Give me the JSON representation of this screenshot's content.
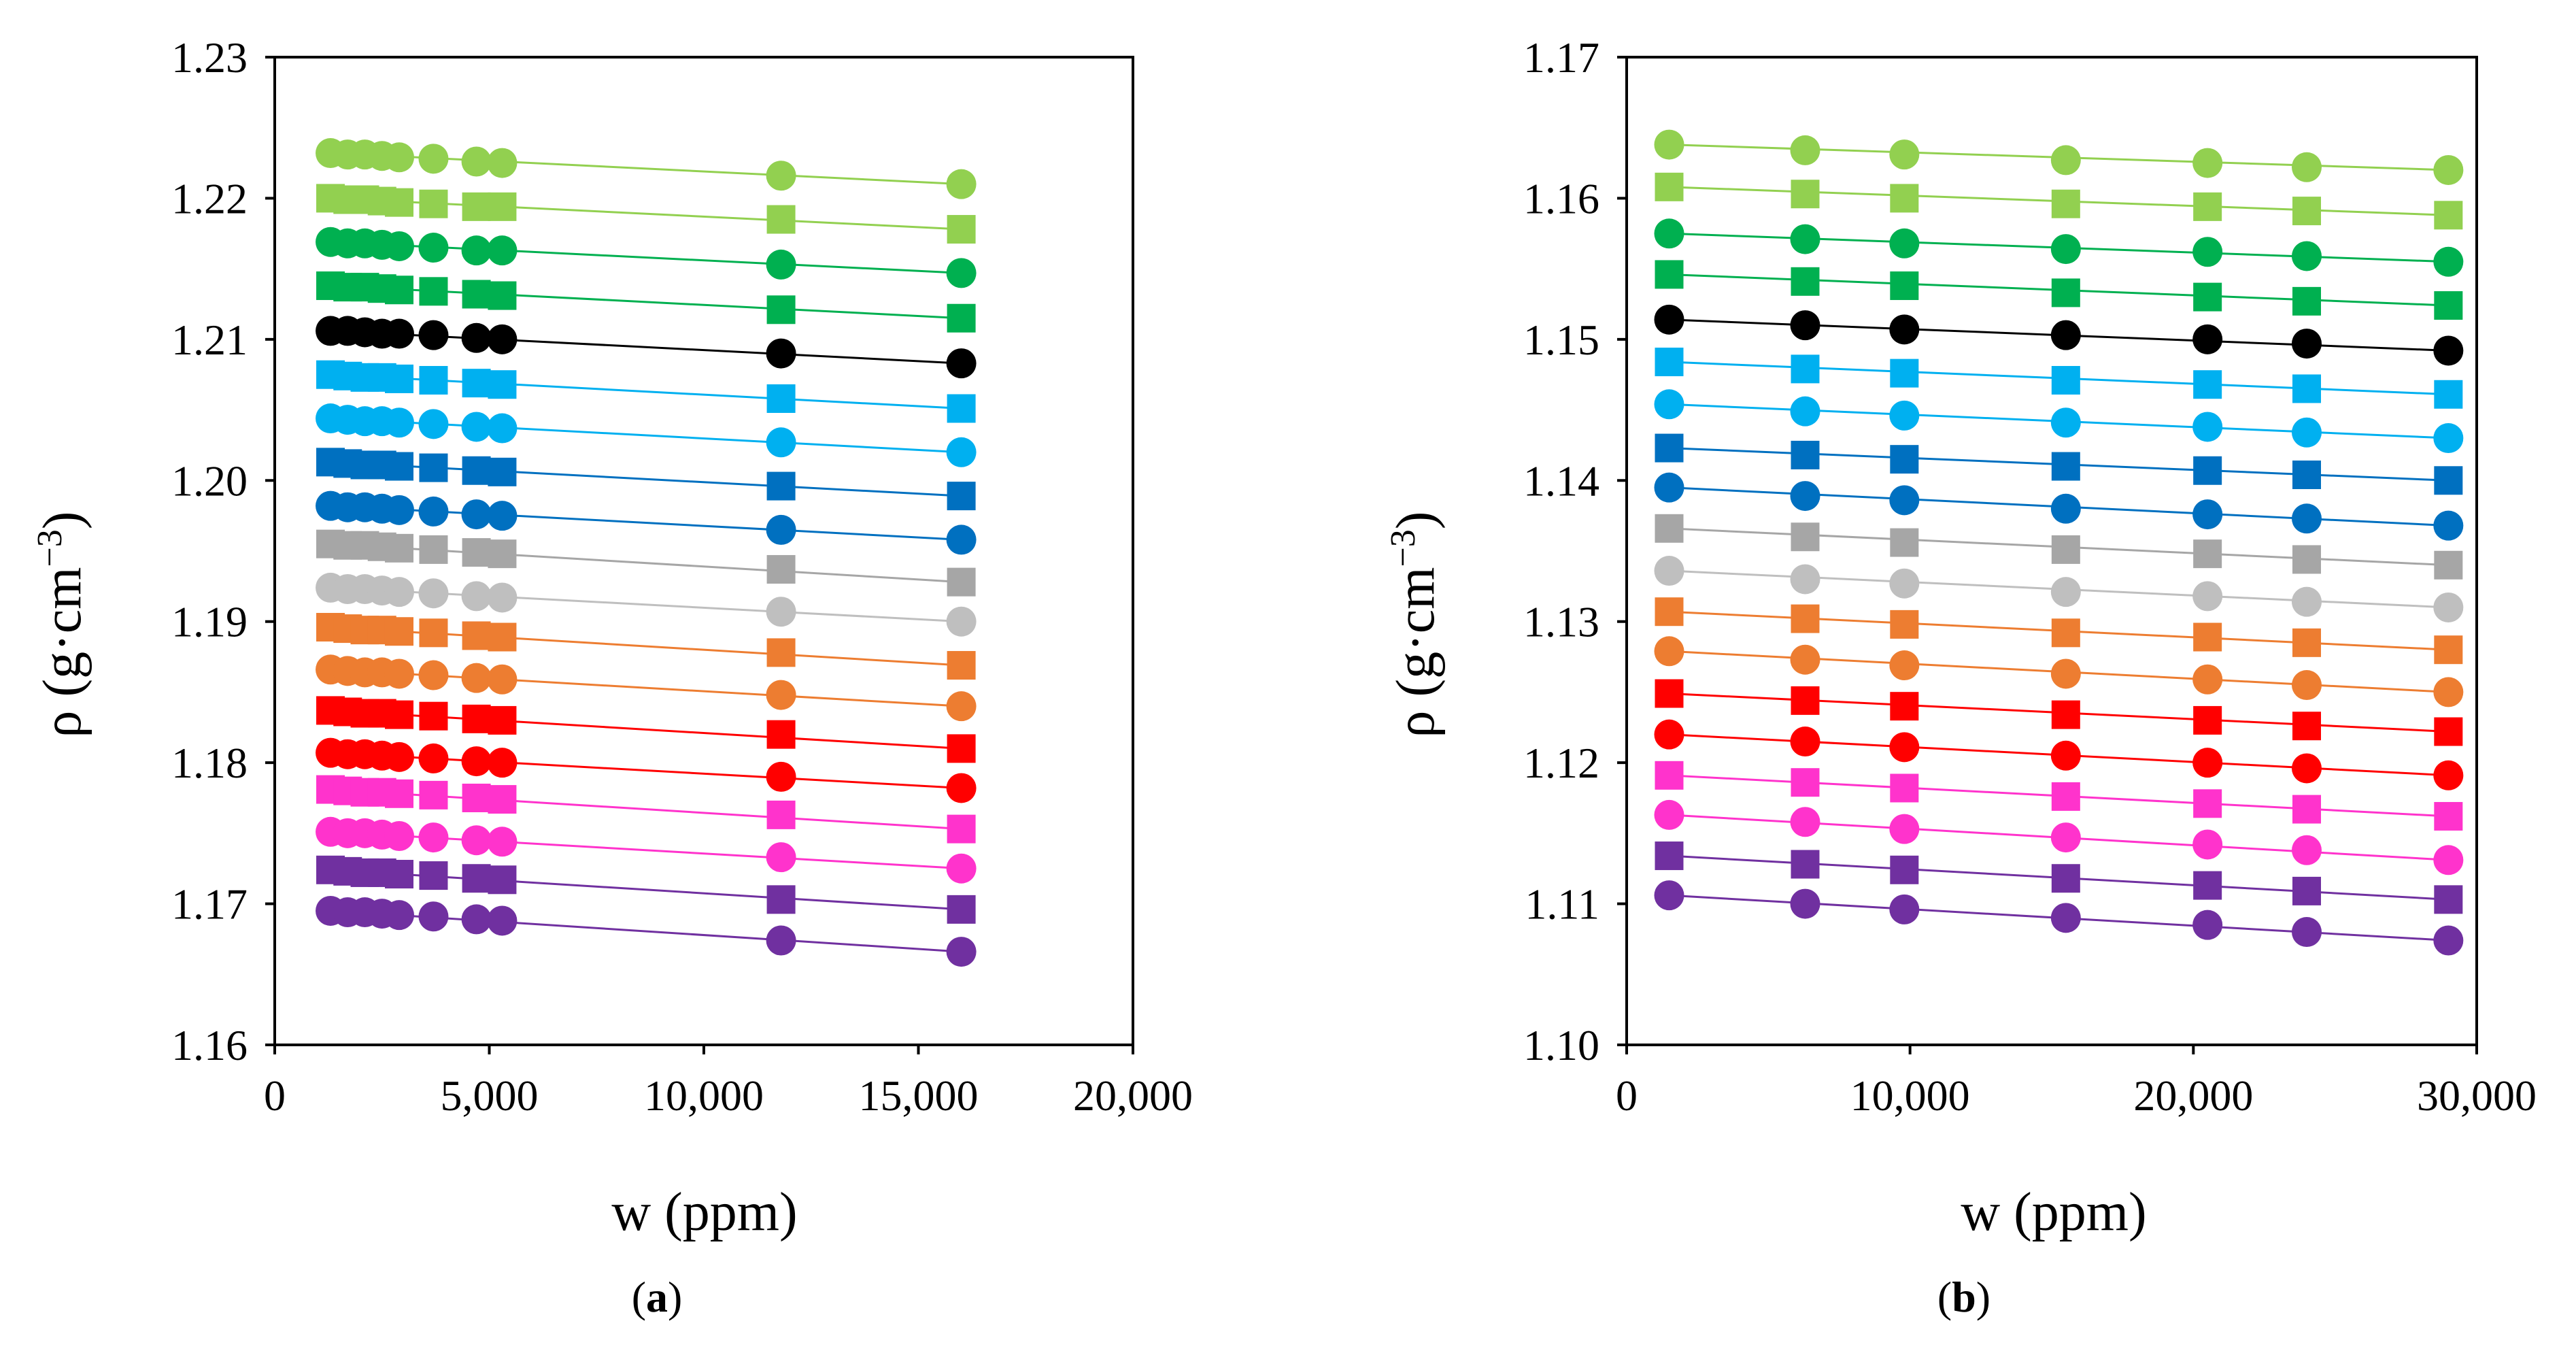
{
  "chart_data": [
    {
      "type": "scatter",
      "panel_label_open": "(",
      "panel_label": "a",
      "panel_label_close": ")",
      "xlabel": "w (ppm)",
      "ylabel_main": "ρ (g·cm",
      "ylabel_sup": "−3",
      "ylabel_close": ")",
      "xlim": [
        0,
        20000
      ],
      "ylim": [
        1.16,
        1.23
      ],
      "x_ticks": [
        0,
        5000,
        10000,
        15000,
        20000
      ],
      "x_tick_labels": [
        "0",
        "5,000",
        "10,000",
        "15,000",
        "20,000"
      ],
      "y_ticks": [
        1.16,
        1.17,
        1.18,
        1.19,
        1.2,
        1.21,
        1.22,
        1.23
      ],
      "y_tick_labels": [
        "1.16",
        "1.17",
        "1.18",
        "1.19",
        "1.20",
        "1.21",
        "1.22",
        "1.23"
      ],
      "x": [
        1300,
        1700,
        2100,
        2500,
        2900,
        3700,
        4700,
        5300,
        11800,
        16000
      ],
      "series": [
        {
          "color": "#92D050",
          "marker": "circle",
          "values": [
            1.2232,
            1.2231,
            1.2231,
            1.223,
            1.2229,
            1.2228,
            1.2226,
            1.2225,
            1.2216,
            1.221
          ]
        },
        {
          "color": "#92D050",
          "marker": "square",
          "values": [
            1.22,
            1.2199,
            1.2199,
            1.2198,
            1.2197,
            1.2196,
            1.2194,
            1.2194,
            1.2185,
            1.2178
          ]
        },
        {
          "color": "#00B050",
          "marker": "circle",
          "values": [
            1.2169,
            1.2168,
            1.2168,
            1.2167,
            1.2166,
            1.2165,
            1.2163,
            1.2163,
            1.2153,
            1.2147
          ]
        },
        {
          "color": "#00B050",
          "marker": "square",
          "values": [
            1.2138,
            1.2137,
            1.2137,
            1.2136,
            1.2135,
            1.2134,
            1.2132,
            1.2131,
            1.2121,
            1.2115
          ]
        },
        {
          "color": "#000000",
          "marker": "circle",
          "values": [
            1.2106,
            1.2106,
            1.2105,
            1.2104,
            1.2104,
            1.2103,
            1.2101,
            1.21,
            1.209,
            1.2083
          ]
        },
        {
          "color": "#00B0F0",
          "marker": "square",
          "values": [
            1.2075,
            1.2074,
            1.2073,
            1.2073,
            1.2072,
            1.2071,
            1.2069,
            1.2068,
            1.2058,
            1.2051
          ]
        },
        {
          "color": "#00B0F0",
          "marker": "circle",
          "values": [
            1.2044,
            1.2043,
            1.2042,
            1.2042,
            1.2041,
            1.204,
            1.2038,
            1.2037,
            1.2027,
            1.202
          ]
        },
        {
          "color": "#0070C0",
          "marker": "square",
          "values": [
            1.2013,
            1.2012,
            1.2011,
            1.2011,
            1.201,
            1.2009,
            1.2007,
            1.2006,
            1.1996,
            1.1989
          ]
        },
        {
          "color": "#0070C0",
          "marker": "circle",
          "values": [
            1.1982,
            1.1981,
            1.1981,
            1.198,
            1.1979,
            1.1978,
            1.1976,
            1.1975,
            1.1965,
            1.1958
          ]
        },
        {
          "color": "#A6A6A6",
          "marker": "square",
          "values": [
            1.1955,
            1.1954,
            1.1954,
            1.1953,
            1.1952,
            1.1951,
            1.1949,
            1.1948,
            1.1937,
            1.1928
          ]
        },
        {
          "color": "#BFBFBF",
          "marker": "circle",
          "values": [
            1.1924,
            1.1923,
            1.1923,
            1.1922,
            1.1921,
            1.192,
            1.1918,
            1.1917,
            1.1907,
            1.19
          ]
        },
        {
          "color": "#ED7D31",
          "marker": "square",
          "values": [
            1.1896,
            1.1895,
            1.1894,
            1.1894,
            1.1893,
            1.1892,
            1.189,
            1.1889,
            1.1878,
            1.1869
          ]
        },
        {
          "color": "#ED7D31",
          "marker": "circle",
          "values": [
            1.1866,
            1.1865,
            1.1864,
            1.1864,
            1.1863,
            1.1862,
            1.186,
            1.1859,
            1.1848,
            1.184
          ]
        },
        {
          "color": "#FF0000",
          "marker": "square",
          "values": [
            1.1837,
            1.1836,
            1.1835,
            1.1835,
            1.1834,
            1.1833,
            1.1831,
            1.183,
            1.182,
            1.181
          ]
        },
        {
          "color": "#FF0000",
          "marker": "circle",
          "values": [
            1.1807,
            1.1806,
            1.1806,
            1.1805,
            1.1804,
            1.1803,
            1.1801,
            1.18,
            1.179,
            1.1782
          ]
        },
        {
          "color": "#FF33CC",
          "marker": "square",
          "values": [
            1.1781,
            1.178,
            1.1779,
            1.1779,
            1.1778,
            1.1777,
            1.1775,
            1.1774,
            1.1763,
            1.1753
          ]
        },
        {
          "color": "#FF33CC",
          "marker": "circle",
          "values": [
            1.1751,
            1.175,
            1.175,
            1.1749,
            1.1748,
            1.1747,
            1.1745,
            1.1744,
            1.1733,
            1.1725
          ]
        },
        {
          "color": "#7030A0",
          "marker": "square",
          "values": [
            1.1724,
            1.1723,
            1.1722,
            1.1722,
            1.1721,
            1.172,
            1.1718,
            1.1717,
            1.1703,
            1.1696
          ]
        },
        {
          "color": "#7030A0",
          "marker": "circle",
          "values": [
            1.1695,
            1.1694,
            1.1694,
            1.1693,
            1.1692,
            1.1691,
            1.1689,
            1.1688,
            1.1674,
            1.1666
          ]
        }
      ]
    },
    {
      "type": "scatter",
      "panel_label_open": "(",
      "panel_label": "b",
      "panel_label_close": ")",
      "xlabel": "w (ppm)",
      "ylabel_main": "ρ (g·cm",
      "ylabel_sup": "−3",
      "ylabel_close": ")",
      "xlim": [
        0,
        30000
      ],
      "ylim": [
        1.1,
        1.17
      ],
      "x_ticks": [
        0,
        10000,
        20000,
        30000
      ],
      "x_tick_labels": [
        "0",
        "10,000",
        "20,000",
        "30,000"
      ],
      "y_ticks": [
        1.1,
        1.11,
        1.12,
        1.13,
        1.14,
        1.15,
        1.16,
        1.17
      ],
      "y_tick_labels": [
        "1.10",
        "1.11",
        "1.12",
        "1.13",
        "1.14",
        "1.15",
        "1.16",
        "1.17"
      ],
      "x": [
        1500,
        6300,
        9800,
        15500,
        20500,
        24000,
        29000
      ],
      "series": [
        {
          "color": "#92D050",
          "marker": "circle",
          "values": [
            1.1638,
            1.1634,
            1.1631,
            1.1627,
            1.1625,
            1.1622,
            1.162
          ]
        },
        {
          "color": "#92D050",
          "marker": "square",
          "values": [
            1.1608,
            1.1603,
            1.16,
            1.1596,
            1.1594,
            1.1591,
            1.1588
          ]
        },
        {
          "color": "#00B050",
          "marker": "circle",
          "values": [
            1.1575,
            1.1571,
            1.1568,
            1.1564,
            1.1562,
            1.1559,
            1.1555
          ]
        },
        {
          "color": "#00B050",
          "marker": "square",
          "values": [
            1.1546,
            1.1541,
            1.1538,
            1.1533,
            1.153,
            1.1527,
            1.1524
          ]
        },
        {
          "color": "#000000",
          "marker": "circle",
          "values": [
            1.1514,
            1.151,
            1.1507,
            1.1503,
            1.15,
            1.1497,
            1.1492
          ]
        },
        {
          "color": "#00B0F0",
          "marker": "square",
          "values": [
            1.1484,
            1.1479,
            1.1476,
            1.1471,
            1.1468,
            1.1465,
            1.1461
          ]
        },
        {
          "color": "#00B0F0",
          "marker": "circle",
          "values": [
            1.1454,
            1.1449,
            1.1446,
            1.1441,
            1.1438,
            1.1434,
            1.143
          ]
        },
        {
          "color": "#0070C0",
          "marker": "square",
          "values": [
            1.1423,
            1.1418,
            1.1415,
            1.141,
            1.1407,
            1.1404,
            1.14
          ]
        },
        {
          "color": "#0070C0",
          "marker": "circle",
          "values": [
            1.1395,
            1.1389,
            1.1386,
            1.138,
            1.1376,
            1.1373,
            1.1368
          ]
        },
        {
          "color": "#A6A6A6",
          "marker": "square",
          "values": [
            1.1366,
            1.136,
            1.1356,
            1.1351,
            1.1348,
            1.1344,
            1.134
          ]
        },
        {
          "color": "#BFBFBF",
          "marker": "circle",
          "values": [
            1.1336,
            1.133,
            1.1327,
            1.1321,
            1.1318,
            1.1314,
            1.131
          ]
        },
        {
          "color": "#ED7D31",
          "marker": "square",
          "values": [
            1.1307,
            1.1302,
            1.1298,
            1.1292,
            1.1289,
            1.1285,
            1.128
          ]
        },
        {
          "color": "#ED7D31",
          "marker": "circle",
          "values": [
            1.1279,
            1.1273,
            1.1269,
            1.1263,
            1.1259,
            1.1255,
            1.125
          ]
        },
        {
          "color": "#FF0000",
          "marker": "square",
          "values": [
            1.1249,
            1.1244,
            1.124,
            1.1234,
            1.123,
            1.1226,
            1.1222
          ]
        },
        {
          "color": "#FF0000",
          "marker": "circle",
          "values": [
            1.122,
            1.1215,
            1.1211,
            1.1205,
            1.12,
            1.1196,
            1.1191
          ]
        },
        {
          "color": "#FF33CC",
          "marker": "square",
          "values": [
            1.1191,
            1.1186,
            1.1182,
            1.1176,
            1.1171,
            1.1167,
            1.1162
          ]
        },
        {
          "color": "#FF33CC",
          "marker": "circle",
          "values": [
            1.1163,
            1.1158,
            1.1153,
            1.1147,
            1.1142,
            1.1138,
            1.1131
          ]
        },
        {
          "color": "#7030A0",
          "marker": "square",
          "values": [
            1.1134,
            1.1128,
            1.1124,
            1.1118,
            1.1113,
            1.1109,
            1.1103
          ]
        },
        {
          "color": "#7030A0",
          "marker": "circle",
          "values": [
            1.1106,
            1.11,
            1.1096,
            1.109,
            1.1085,
            1.108,
            1.1074
          ]
        }
      ]
    }
  ]
}
